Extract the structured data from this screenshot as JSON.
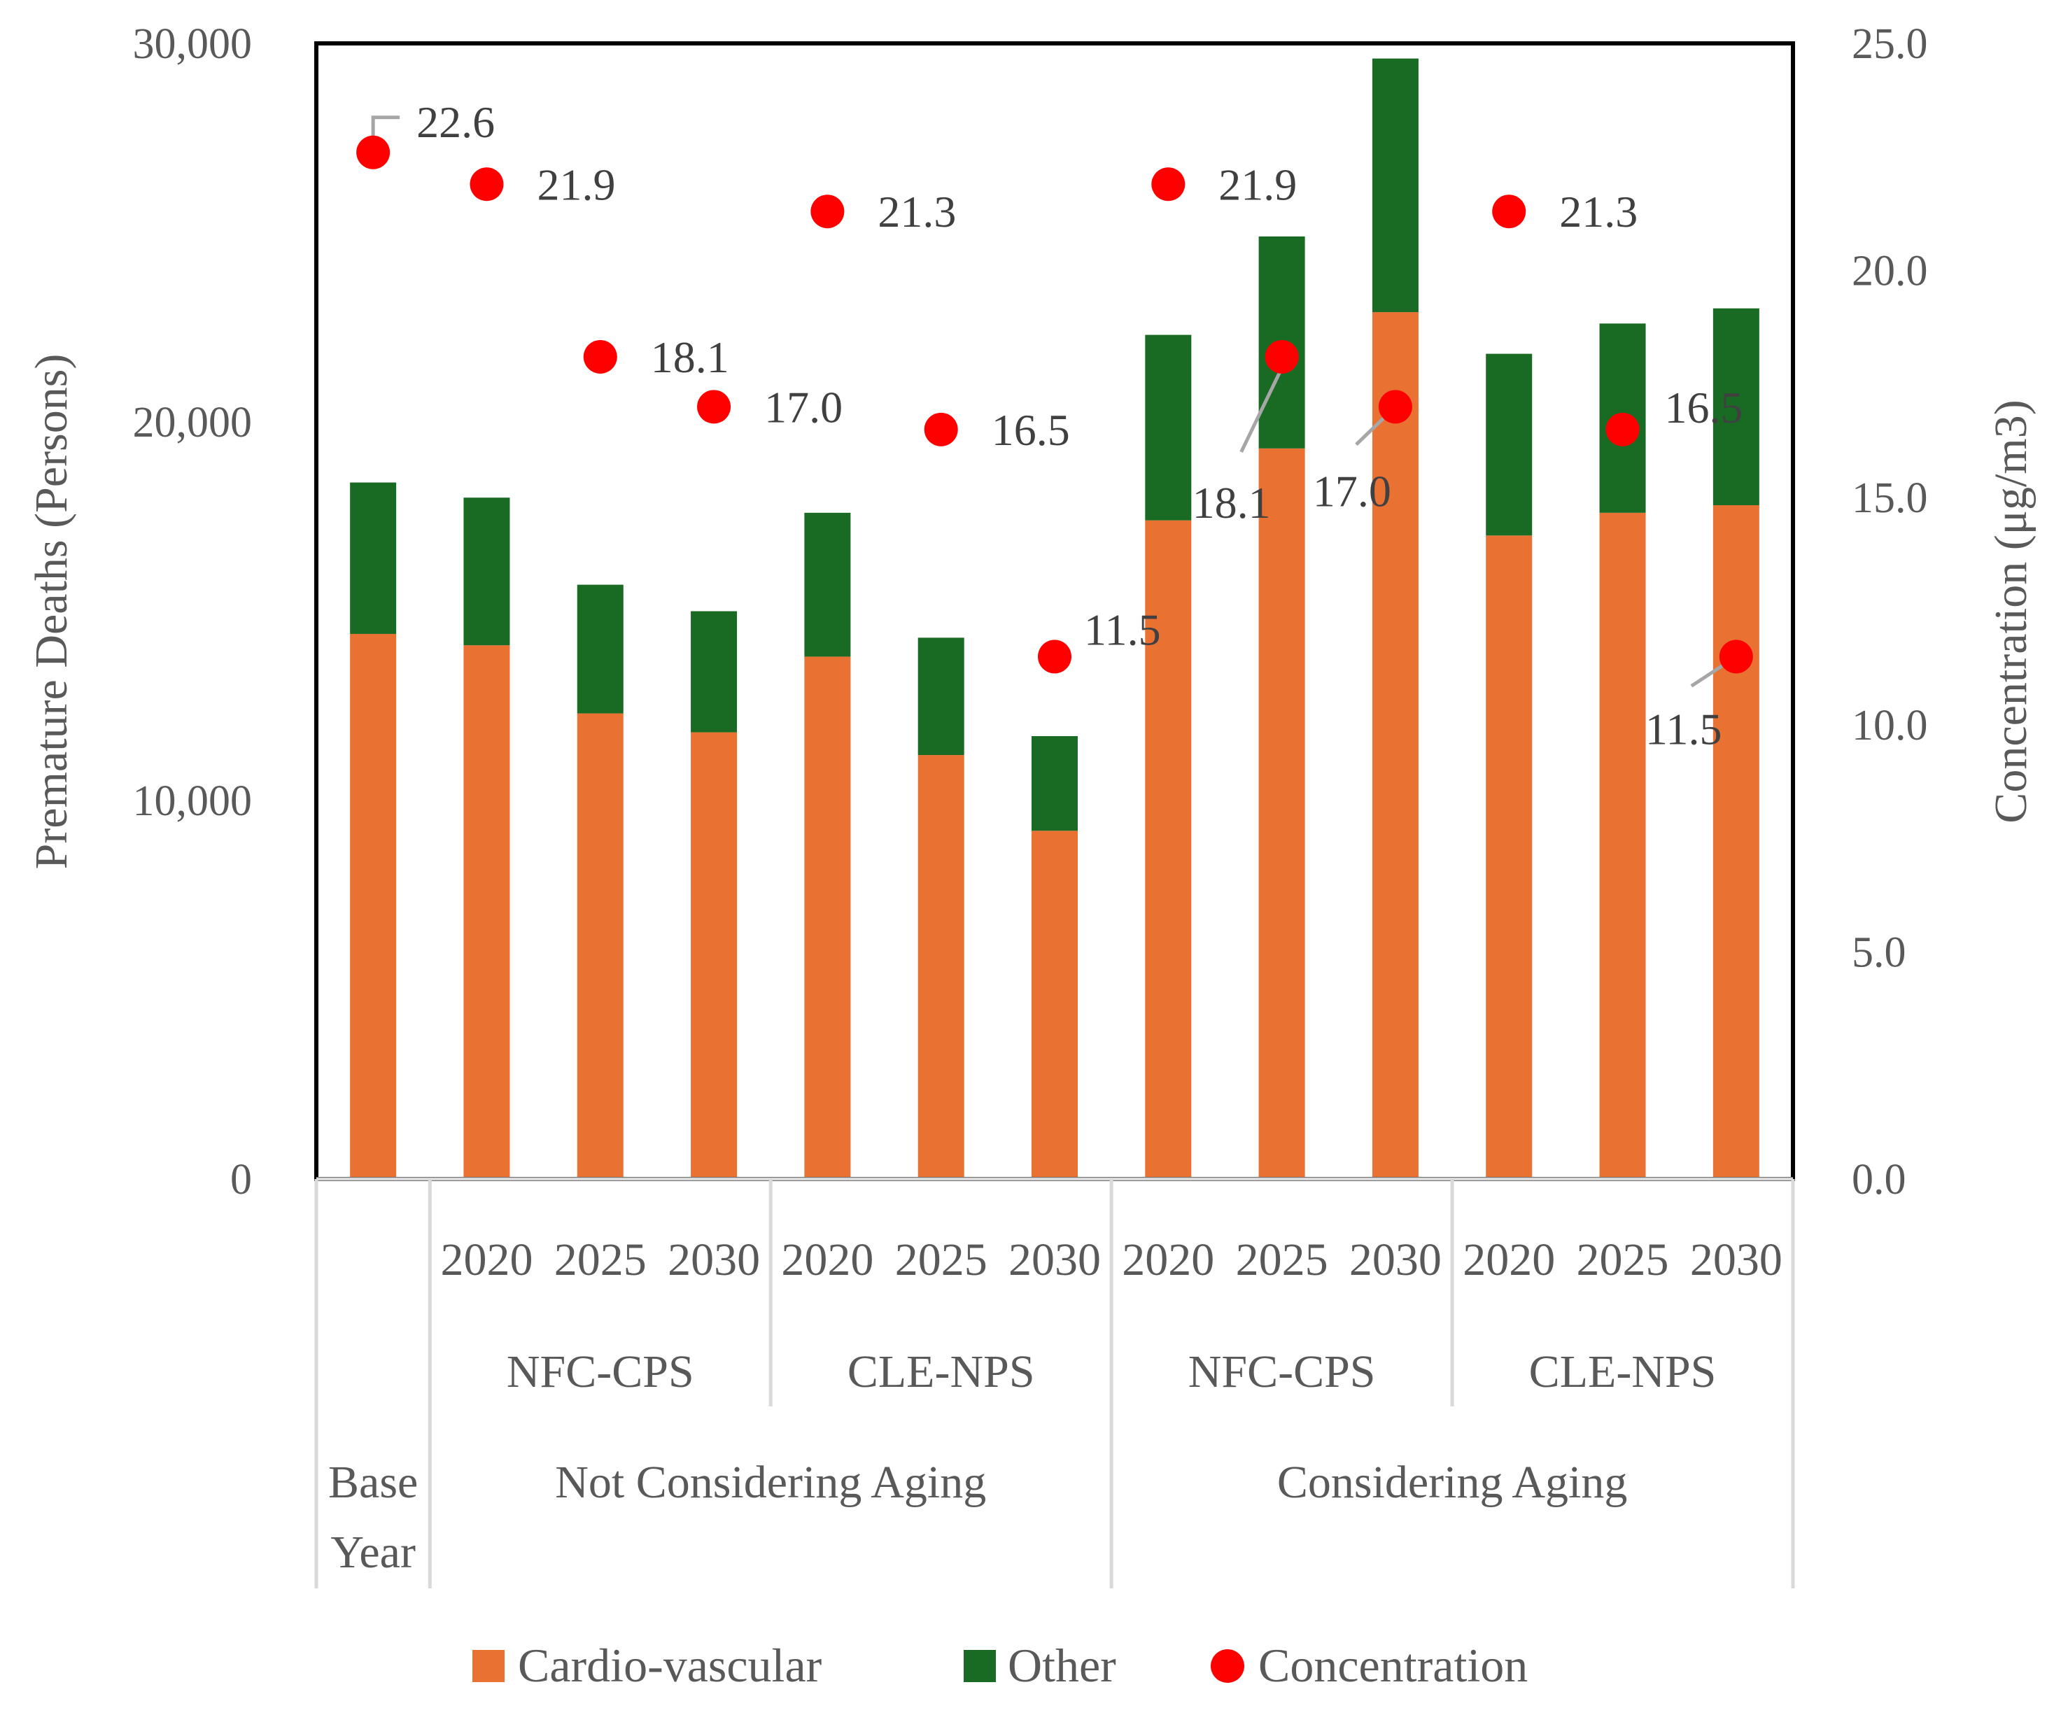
{
  "chart_data": {
    "type": "bar",
    "subtype": "stacked-bar-with-scatter-secondary-axis",
    "categories": [
      {
        "year": "",
        "scenario": "",
        "group": "Base Year"
      },
      {
        "year": "2020",
        "scenario": "NFC-CPS",
        "group": "Not Considering Aging"
      },
      {
        "year": "2025",
        "scenario": "NFC-CPS",
        "group": "Not Considering Aging"
      },
      {
        "year": "2030",
        "scenario": "NFC-CPS",
        "group": "Not Considering Aging"
      },
      {
        "year": "2020",
        "scenario": "CLE-NPS",
        "group": "Not Considering Aging"
      },
      {
        "year": "2025",
        "scenario": "CLE-NPS",
        "group": "Not Considering Aging"
      },
      {
        "year": "2030",
        "scenario": "CLE-NPS",
        "group": "Not Considering Aging"
      },
      {
        "year": "2020",
        "scenario": "NFC-CPS",
        "group": "Considering Aging"
      },
      {
        "year": "2025",
        "scenario": "NFC-CPS",
        "group": "Considering Aging"
      },
      {
        "year": "2030",
        "scenario": "NFC-CPS",
        "group": "Considering Aging"
      },
      {
        "year": "2020",
        "scenario": "CLE-NPS",
        "group": "Considering Aging"
      },
      {
        "year": "2025",
        "scenario": "CLE-NPS",
        "group": "Considering Aging"
      },
      {
        "year": "2030",
        "scenario": "CLE-NPS",
        "group": "Considering Aging"
      }
    ],
    "year_labels": [
      "2020",
      "2025",
      "2030",
      "2020",
      "2025",
      "2030",
      "2020",
      "2025",
      "2030",
      "2020",
      "2025",
      "2030"
    ],
    "scenario_labels": [
      "NFC-CPS",
      "CLE-NPS",
      "NFC-CPS",
      "CLE-NPS"
    ],
    "group_labels": [
      "Base Year",
      "Not Considering Aging",
      "Considering Aging"
    ],
    "series": [
      {
        "name": "Cardio-vascular",
        "axis": "left",
        "color": "#E97132",
        "values": [
          14400,
          14100,
          12300,
          11800,
          13800,
          11200,
          9200,
          17400,
          19300,
          22900,
          17000,
          17600,
          17800
        ]
      },
      {
        "name": "Other",
        "axis": "left",
        "color": "#196B24",
        "values": [
          4000,
          3900,
          3400,
          3200,
          3800,
          3100,
          2500,
          4900,
          5600,
          6700,
          4800,
          5000,
          5200
        ]
      },
      {
        "name": "Concentration",
        "axis": "right",
        "color": "#FF0000",
        "values": [
          22.6,
          21.9,
          18.1,
          17.0,
          21.3,
          16.5,
          11.5,
          21.9,
          18.1,
          17.0,
          21.3,
          16.5,
          11.5
        ]
      }
    ],
    "concentration_labels": [
      "22.6",
      "21.9",
      "18.1",
      "17.0",
      "21.3",
      "16.5",
      "11.5",
      "21.9",
      "18.1",
      "17.0",
      "21.3",
      "16.5",
      "11.5"
    ],
    "y_left": {
      "label": "Premature Deaths (Persons)",
      "min": 0,
      "max": 30000,
      "ticks": [
        0,
        10000,
        20000,
        30000
      ],
      "tick_labels": [
        "0",
        "10,000",
        "20,000",
        "30,000"
      ]
    },
    "y_right": {
      "label": "Concentration (μg/m3)",
      "min": 0,
      "max": 25,
      "ticks": [
        0,
        5,
        10,
        15,
        20,
        25
      ],
      "tick_labels": [
        "0.0",
        "5.0",
        "10.0",
        "15.0",
        "20.0",
        "25.0"
      ]
    },
    "legend": {
      "position": "bottom",
      "items": [
        "Cardio-vascular",
        "Other",
        "Concentration"
      ]
    },
    "grid": false
  }
}
